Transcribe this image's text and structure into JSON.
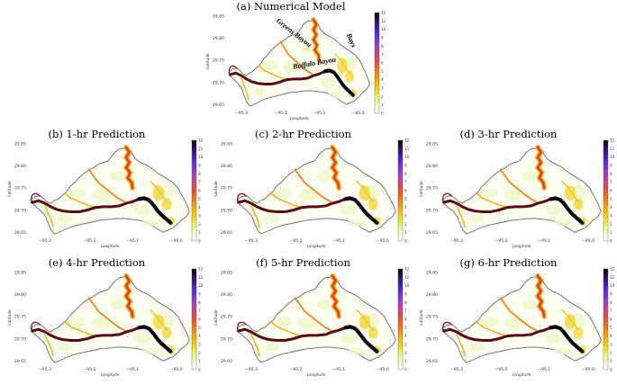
{
  "panels": [
    {
      "id": "a",
      "title": "(a) Numerical Model",
      "annotations": [
        "Greens Bayou",
        "Bays",
        "Buffalo Bayou"
      ]
    },
    {
      "id": "b",
      "title": "(b) 1-hr Prediction"
    },
    {
      "id": "c",
      "title": "(c) 2-hr Prediction"
    },
    {
      "id": "d",
      "title": "(d) 3-hr Prediction"
    },
    {
      "id": "e",
      "title": "(e) 4-hr Prediction"
    },
    {
      "id": "f",
      "title": "(f) 5-hr Prediction"
    },
    {
      "id": "g",
      "title": "(g) 6-hr Prediction"
    }
  ],
  "axes": {
    "xlabel": "Longitude",
    "ylabel": "Latitude",
    "xticks": [
      "−95.3",
      "−95.2",
      "−95.1",
      "−95.0"
    ],
    "yticks": [
      "29.85",
      "29.80",
      "29.75",
      "29.70",
      "29.65"
    ]
  },
  "colorbar": {
    "ticks": [
      "12",
      "11",
      "10",
      "9",
      "8",
      "7",
      "6",
      "5",
      "4",
      "3",
      "2",
      "1",
      "0"
    ],
    "colors": [
      "#000000",
      "#2a1065",
      "#4a20c0",
      "#7030e0",
      "#a040c0",
      "#d04080",
      "#e85030",
      "#f07a10",
      "#f8a800",
      "#f6d000",
      "#eef060",
      "#f4fac0",
      "#ffffff"
    ]
  }
}
